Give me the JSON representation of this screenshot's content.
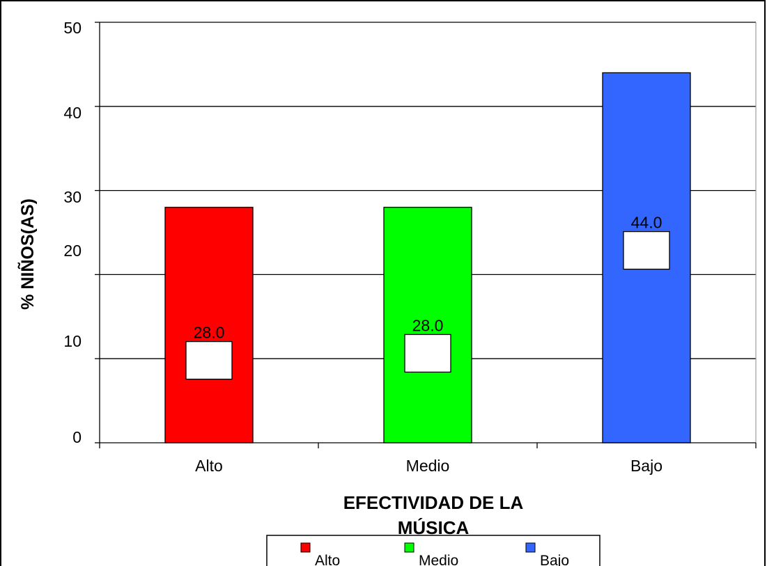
{
  "chart_data": {
    "type": "bar",
    "categories": [
      "Alto",
      "Medio",
      "Bajo"
    ],
    "values": [
      28.0,
      28.0,
      44.0
    ],
    "data_labels": [
      "28.0",
      "28.0",
      "44.0"
    ],
    "colors": [
      "#ff0000",
      "#00ff00",
      "#3366ff"
    ],
    "ylabel": "% NIÑOS(AS)",
    "xlabel_lines": [
      "EFECTIVIDAD DE LA",
      "MÚSICA"
    ],
    "y_ticks": [
      "0",
      "10",
      "20",
      "30",
      "40",
      "50"
    ],
    "ylim": [
      0,
      50
    ],
    "grid": true,
    "legend": {
      "position": "bottom",
      "entries": [
        "Alto",
        "Medio",
        "Bajo"
      ]
    }
  }
}
